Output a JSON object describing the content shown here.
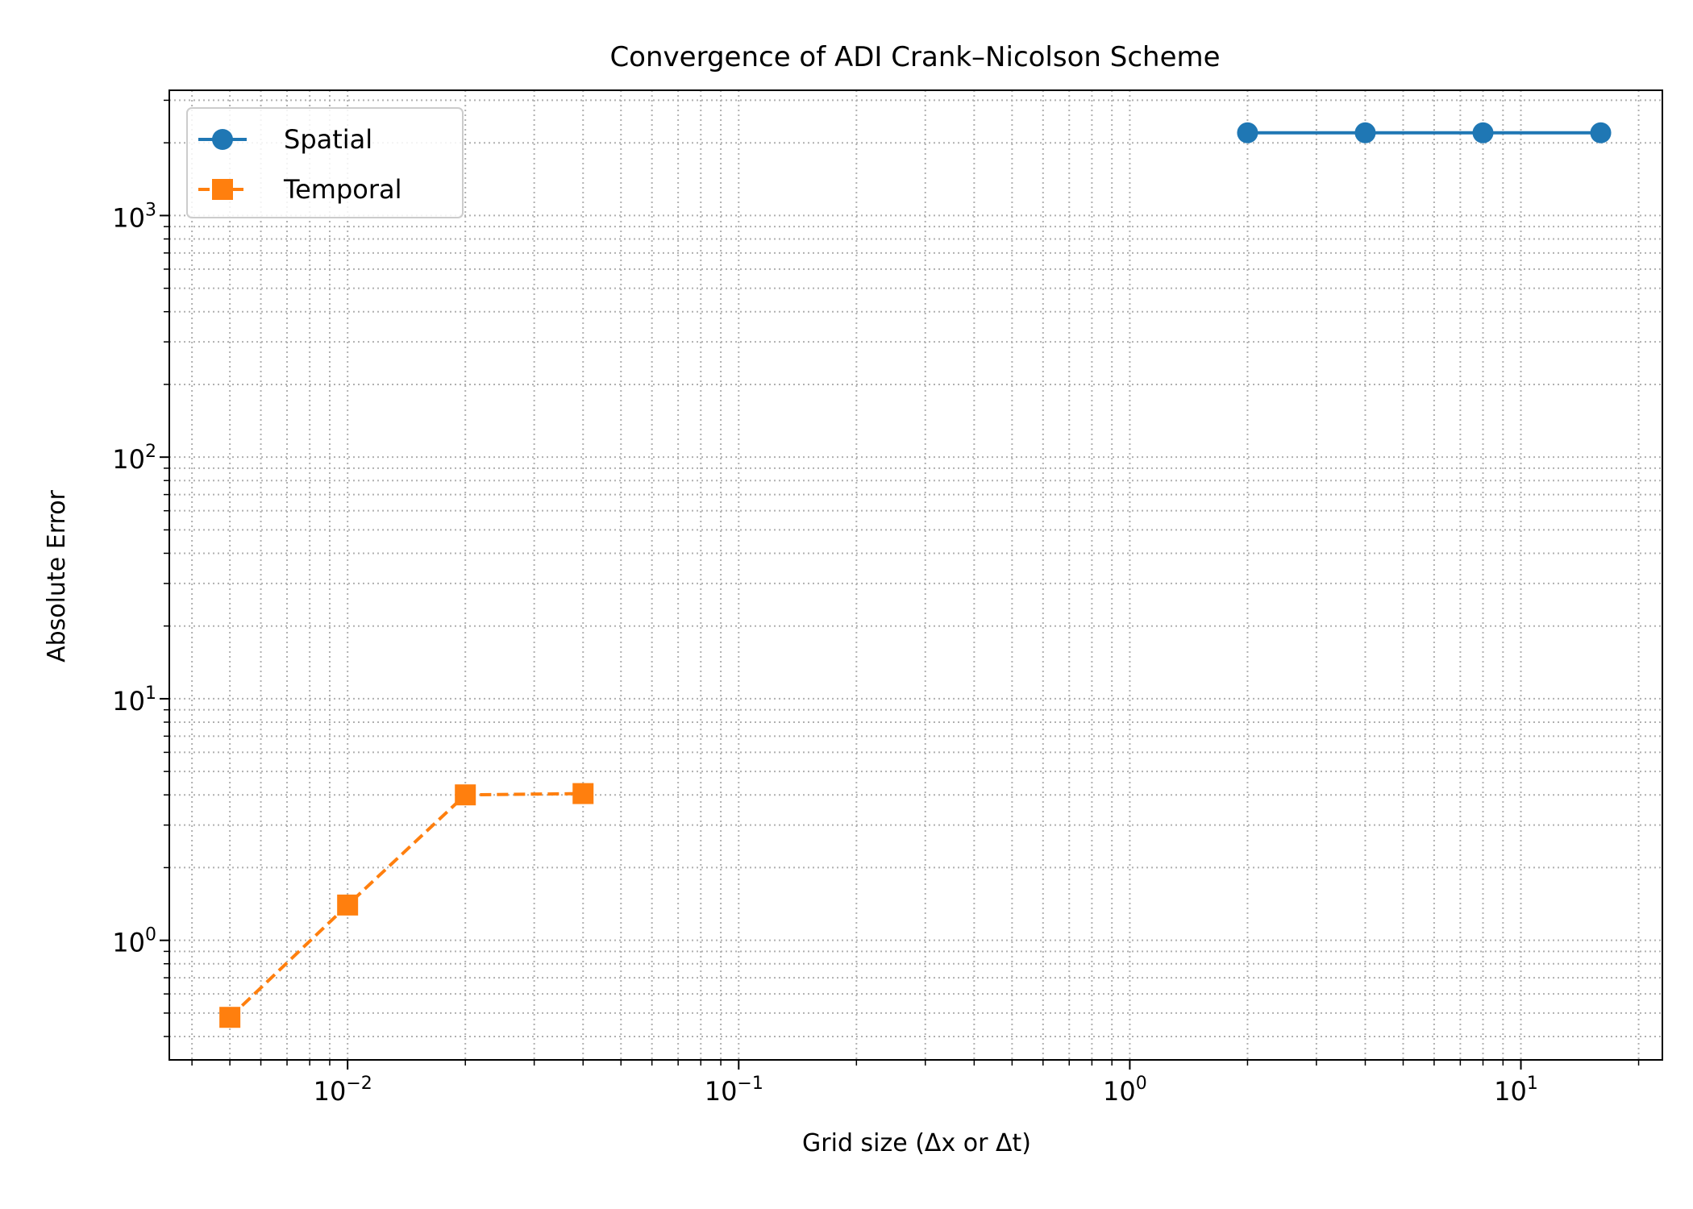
{
  "chart_data": {
    "type": "line",
    "title": "Convergence of ADI Crank–Nicolson Scheme",
    "xlabel": "Grid size (Δx or Δt)",
    "ylabel": "Absolute Error",
    "xscale": "log",
    "yscale": "log",
    "xlim": [
      0.0035,
      23
    ],
    "ylim": [
      0.32,
      3300
    ],
    "x_ticks": [
      {
        "value": 0.01,
        "base": "10",
        "exp": "−2"
      },
      {
        "value": 0.1,
        "base": "10",
        "exp": "−1"
      },
      {
        "value": 1,
        "base": "10",
        "exp": "0"
      },
      {
        "value": 10,
        "base": "10",
        "exp": "1"
      }
    ],
    "y_ticks": [
      {
        "value": 1,
        "base": "10",
        "exp": "0"
      },
      {
        "value": 10,
        "base": "10",
        "exp": "1"
      },
      {
        "value": 100,
        "base": "10",
        "exp": "2"
      },
      {
        "value": 1000,
        "base": "10",
        "exp": "3"
      }
    ],
    "grid": "major and minor, dotted",
    "legend_position": "upper-left",
    "series": [
      {
        "name": "Spatial",
        "color": "#1f77b4",
        "marker": "circle",
        "linestyle": "solid",
        "x": [
          2,
          4,
          8,
          16
        ],
        "y": [
          2200,
          2200,
          2200,
          2200
        ]
      },
      {
        "name": "Temporal",
        "color": "#ff7f0e",
        "marker": "square",
        "linestyle": "dashed",
        "x": [
          0.005,
          0.01,
          0.02,
          0.04
        ],
        "y": [
          0.48,
          1.4,
          4.0,
          4.05
        ]
      }
    ]
  }
}
